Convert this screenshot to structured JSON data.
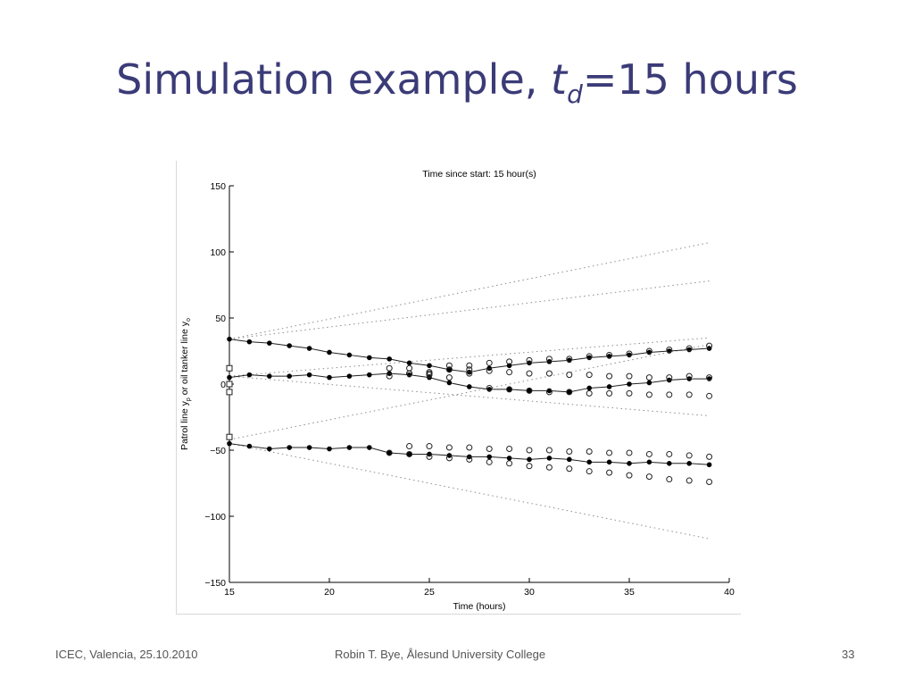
{
  "slide": {
    "title_main": "Simulation example, ",
    "title_var": "t",
    "title_sub": "d",
    "title_rest": "=15 hours"
  },
  "footer": {
    "left": "ICEC, Valencia, 25.10.2010",
    "center": "Robin T. Bye, Ålesund University College",
    "page": "33"
  },
  "chart_data": {
    "type": "line",
    "title": "Time since start: 15 hour(s)",
    "xlabel": "Time (hours)",
    "ylabel": "Patrol line y_p or oil tanker line y_o",
    "xlim": [
      15,
      40
    ],
    "ylim": [
      -150,
      150
    ],
    "xticks": [
      "15",
      "20",
      "25",
      "30",
      "35",
      "40"
    ],
    "yticks": [
      "150",
      "100",
      "50",
      "0",
      "−50",
      "−100",
      "−150"
    ],
    "grid": false,
    "legend": "none",
    "start_markers": [
      12,
      0,
      -6,
      -40
    ],
    "series": [
      {
        "marker": "filled-line",
        "x": [
          15,
          16,
          17,
          18,
          19,
          20,
          21,
          22,
          23,
          24,
          25,
          26,
          27,
          28,
          29,
          30,
          31,
          32,
          33,
          34,
          35,
          36,
          37,
          38,
          39
        ],
        "y": [
          34,
          32,
          31,
          29,
          27,
          24,
          22,
          20,
          19,
          16,
          14,
          11,
          9,
          12,
          14,
          16,
          17,
          18,
          20,
          21,
          22,
          24,
          25,
          26,
          27
        ]
      },
      {
        "marker": "filled-line",
        "x": [
          15,
          16,
          17,
          18,
          19,
          20,
          21,
          22,
          23,
          24,
          25,
          26,
          27,
          28,
          29,
          30,
          31,
          32,
          33,
          34,
          35,
          36,
          37,
          38,
          39
        ],
        "y": [
          5,
          7,
          6,
          6,
          7,
          5,
          6,
          7,
          8,
          7,
          5,
          1,
          -2,
          -4,
          -4,
          -5,
          -5,
          -6,
          -3,
          -2,
          0,
          1,
          3,
          4,
          4
        ]
      },
      {
        "marker": "filled-line",
        "x": [
          15,
          16,
          17,
          18,
          19,
          20,
          21,
          22,
          23,
          24,
          25,
          26,
          27,
          28,
          29,
          30,
          31,
          32,
          33,
          34,
          35,
          36,
          37,
          38,
          39
        ],
        "y": [
          -45,
          -47,
          -49,
          -48,
          -48,
          -49,
          -48,
          -48,
          -52,
          -53,
          -53,
          -54,
          -55,
          -55,
          -56,
          -57,
          -56,
          -57,
          -59,
          -59,
          -60,
          -59,
          -60,
          -60,
          -61
        ]
      },
      {
        "marker": "open-circle",
        "x": [
          23,
          24,
          25,
          26,
          27,
          28,
          29,
          30,
          31,
          32,
          33,
          34,
          35,
          36,
          37,
          38,
          39
        ],
        "y": [
          12,
          12,
          9,
          14,
          14,
          16,
          17,
          18,
          19,
          19,
          21,
          22,
          23,
          25,
          26,
          27,
          29
        ]
      },
      {
        "marker": "open-circle",
        "x": [
          23,
          24,
          25,
          26,
          27,
          28,
          29,
          30,
          31,
          32,
          33,
          34,
          35,
          36,
          37,
          38,
          39
        ],
        "y": [
          6,
          8,
          7,
          11,
          11,
          10,
          9,
          8,
          8,
          7,
          7,
          6,
          6,
          5,
          5,
          6,
          5
        ]
      },
      {
        "marker": "open-circle",
        "x": [
          24,
          25,
          26,
          27,
          28,
          29,
          30,
          31,
          32,
          33,
          34,
          35,
          36,
          37,
          38,
          39
        ],
        "y": [
          8,
          8,
          5,
          8,
          -3,
          -4,
          -5,
          -6,
          -6,
          -7,
          -7,
          -7,
          -8,
          -8,
          -8,
          -9
        ]
      },
      {
        "marker": "open-circle",
        "x": [
          24,
          25,
          26,
          27,
          28,
          29,
          30,
          31,
          32,
          33,
          34,
          35,
          36,
          37,
          38,
          39
        ],
        "y": [
          -47,
          -47,
          -48,
          -48,
          -49,
          -49,
          -50,
          -50,
          -51,
          -51,
          -52,
          -52,
          -53,
          -53,
          -54,
          -55
        ]
      },
      {
        "marker": "open-circle",
        "x": [
          23,
          24,
          25,
          26,
          27,
          28,
          29,
          30,
          31,
          32,
          33,
          34,
          35,
          36,
          37,
          38,
          39
        ],
        "y": [
          -52,
          -53,
          -55,
          -56,
          -57,
          -59,
          -60,
          -62,
          -63,
          -64,
          -66,
          -67,
          -69,
          -70,
          -72,
          -73,
          -74
        ]
      }
    ],
    "dotted_lines": [
      {
        "x": [
          15,
          39
        ],
        "y": [
          34,
          107
        ]
      },
      {
        "x": [
          15,
          39
        ],
        "y": [
          34,
          78
        ]
      },
      {
        "x": [
          15,
          39
        ],
        "y": [
          6,
          35
        ]
      },
      {
        "x": [
          15,
          39
        ],
        "y": [
          6,
          -24
        ]
      },
      {
        "x": [
          15,
          39
        ],
        "y": [
          -42,
          30
        ]
      },
      {
        "x": [
          15,
          39
        ],
        "y": [
          -45,
          -117
        ]
      }
    ]
  }
}
